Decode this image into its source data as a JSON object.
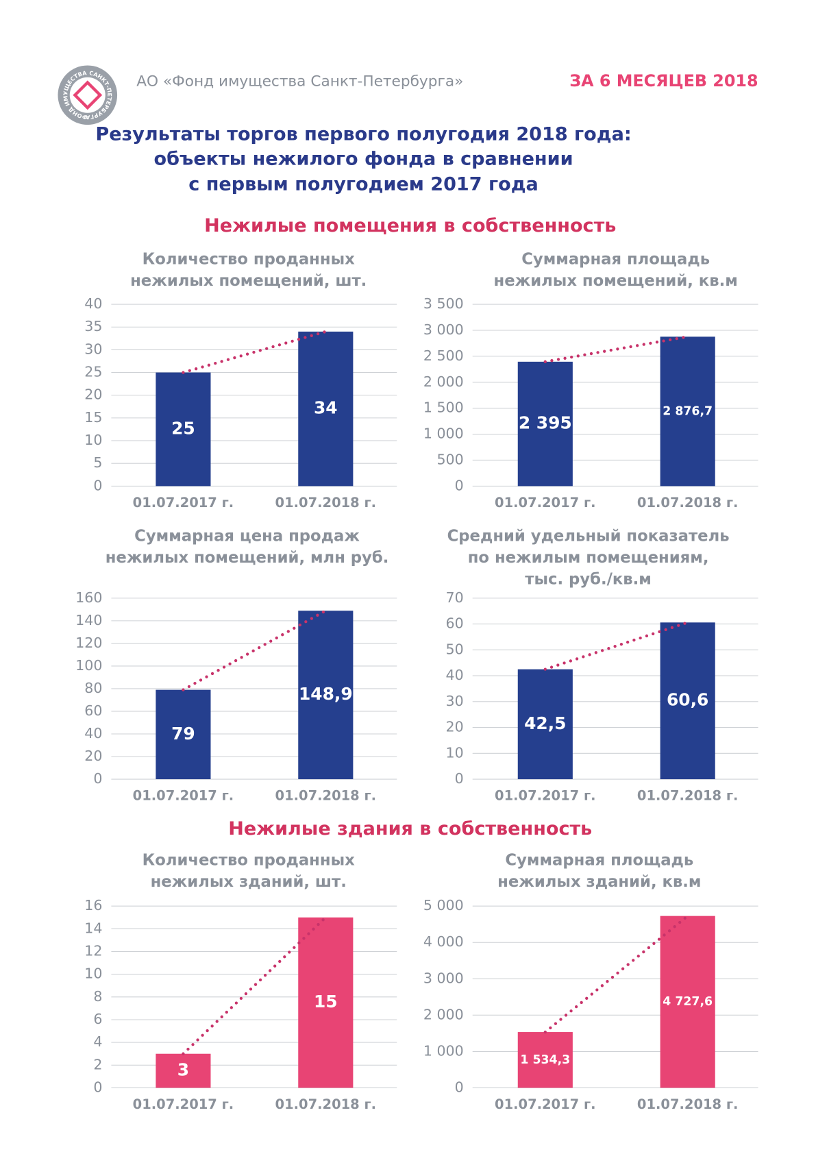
{
  "header": {
    "organization": "АО «Фонд имущества Санкт-Петербурга»",
    "period": "ЗА 6 МЕСЯЦЕВ 2018",
    "logo_text": "ФОНД ИМУЩЕСТВА САНКТ-ПЕТЕРБУРГА"
  },
  "title": [
    "Результаты торгов первого полугодия 2018 года:",
    "объекты нежилого фонда в сравнении",
    "с первым полугодием 2017 года"
  ],
  "sections": [
    "Нежилые помещения в собственность",
    "Нежилые здания в собственность"
  ],
  "chart_data": [
    {
      "type": "bar",
      "title": [
        "Количество проданных",
        "нежилых помещений, шт."
      ],
      "categories": [
        "01.07.2017 г.",
        "01.07.2018 г."
      ],
      "values": [
        25,
        34
      ],
      "color": "#253f8e",
      "ylim": [
        0,
        40
      ],
      "yticks": [
        0,
        5,
        10,
        15,
        20,
        25,
        30,
        35,
        40
      ],
      "grid": true,
      "trendline": true,
      "trendline_color": "#c8336a"
    },
    {
      "type": "bar",
      "title": [
        "Суммарная площадь",
        "нежилых помещений, кв.м"
      ],
      "categories": [
        "01.07.2017 г.",
        "01.07.2018 г."
      ],
      "values": [
        2395,
        2876.7
      ],
      "value_labels": [
        "2 395",
        "2 876,7"
      ],
      "color": "#253f8e",
      "ylim": [
        0,
        3500
      ],
      "yticks": [
        0,
        500,
        {
          "value": 1000,
          "label": "1 000"
        },
        {
          "value": 1500,
          "label": "1 500"
        },
        {
          "value": 2000,
          "label": "2 000"
        },
        {
          "value": 2500,
          "label": "2 500"
        },
        {
          "value": 3000,
          "label": "3 000"
        },
        {
          "value": 3500,
          "label": "3 500"
        }
      ],
      "grid": true,
      "trendline": true,
      "trendline_color": "#c8336a"
    },
    {
      "type": "bar",
      "title": [
        "Суммарная цена продаж",
        "нежилых помещений, млн руб."
      ],
      "categories": [
        "01.07.2017 г.",
        "01.07.2018 г."
      ],
      "values": [
        79,
        148.9
      ],
      "value_labels": [
        "79",
        "148,9"
      ],
      "color": "#253f8e",
      "ylim": [
        0,
        160
      ],
      "yticks": [
        0,
        20,
        40,
        60,
        80,
        100,
        120,
        140,
        160
      ],
      "grid": true,
      "trendline": true,
      "trendline_color": "#c8336a"
    },
    {
      "type": "bar",
      "title": [
        "Средний удельный показатель",
        "по нежилым помещениям,",
        "тыс. руб./кв.м"
      ],
      "categories": [
        "01.07.2017 г.",
        "01.07.2018 г."
      ],
      "values": [
        42.5,
        60.6
      ],
      "value_labels": [
        "42,5",
        "60,6"
      ],
      "color": "#253f8e",
      "ylim": [
        0,
        70
      ],
      "yticks": [
        0,
        10,
        20,
        30,
        40,
        50,
        60,
        70
      ],
      "grid": true,
      "trendline": true,
      "trendline_color": "#c8336a"
    },
    {
      "type": "bar",
      "title": [
        "Количество проданных",
        "нежилых зданий, шт."
      ],
      "categories": [
        "01.07.2017 г.",
        "01.07.2018 г."
      ],
      "values": [
        3,
        15
      ],
      "color": "#e84474",
      "ylim": [
        0,
        16
      ],
      "yticks": [
        0,
        2,
        4,
        6,
        8,
        10,
        12,
        14,
        16
      ],
      "grid": true,
      "trendline": true,
      "trendline_color": "#c8336a"
    },
    {
      "type": "bar",
      "title": [
        "Суммарная площадь",
        "нежилых зданий, кв.м"
      ],
      "categories": [
        "01.07.2017 г.",
        "01.07.2018 г."
      ],
      "values": [
        1534.3,
        4727.6
      ],
      "value_labels": [
        "1 534,3",
        "4 727,6"
      ],
      "color": "#e84474",
      "ylim": [
        0,
        5000
      ],
      "yticks": [
        0,
        {
          "value": 1000,
          "label": "1 000"
        },
        {
          "value": 2000,
          "label": "2 000"
        },
        {
          "value": 3000,
          "label": "3 000"
        },
        {
          "value": 4000,
          "label": "4 000"
        },
        {
          "value": 5000,
          "label": "5 000"
        }
      ],
      "grid": true,
      "trendline": true,
      "trendline_color": "#c8336a"
    }
  ]
}
